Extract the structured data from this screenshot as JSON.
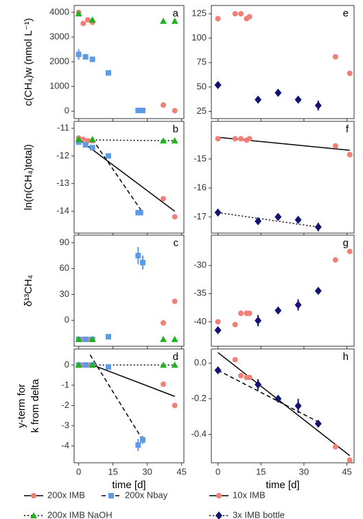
{
  "chart_data": [
    {
      "type": "scatter",
      "panel": "a",
      "ylabel": "c(CH₄)w (nmol L⁻¹)",
      "xlim": [
        -2,
        46
      ],
      "ylim": [
        -300,
        4280
      ],
      "xticks": [
        0,
        15,
        30,
        45
      ],
      "yticks": [
        0,
        1000,
        2000,
        3000,
        4000
      ],
      "series": [
        {
          "name": "200x IMB",
          "color": "#f07f76",
          "marker": "circle",
          "x": [
            0,
            2,
            4,
            6,
            37,
            42
          ],
          "y": [
            4000,
            3550,
            3700,
            3600,
            250,
            20
          ]
        },
        {
          "name": "200x Nbay",
          "color": "#5b9be8",
          "marker": "square",
          "x": [
            0,
            3,
            6,
            13,
            26,
            27,
            28
          ],
          "y": [
            2300,
            2200,
            2100,
            1550,
            30,
            30,
            30
          ],
          "errors": [
            220,
            null,
            null,
            null,
            null,
            null,
            null
          ]
        },
        {
          "name": "200x IMB NaOH",
          "color": "#1db31d",
          "marker": "triangle",
          "x": [
            0,
            6,
            37,
            42
          ],
          "y": [
            3950,
            3700,
            3650,
            3650
          ]
        }
      ],
      "lines": []
    },
    {
      "type": "scatter",
      "panel": "b",
      "ylabel": "ln(n(CH₄)total)",
      "xlim": [
        -2,
        46
      ],
      "ylim": [
        -14.79,
        -10.75
      ],
      "xticks": [
        0,
        15,
        30,
        45
      ],
      "yticks": [
        -14,
        -13,
        -12,
        -11
      ],
      "series": [
        {
          "name": "200x IMB",
          "color": "#f07f76",
          "marker": "circle",
          "x": [
            0,
            2,
            4,
            6,
            37,
            42
          ],
          "y": [
            -11.35,
            -11.4,
            -11.45,
            -11.45,
            -13.55,
            -14.2
          ]
        },
        {
          "name": "200x Nbay",
          "color": "#5b9be8",
          "marker": "square",
          "x": [
            0,
            3,
            6,
            13,
            26,
            27
          ],
          "y": [
            -11.5,
            -11.6,
            -11.7,
            -12,
            -14.05,
            -14.05
          ]
        },
        {
          "name": "200x IMB NaOH",
          "color": "#1db31d",
          "marker": "triangle",
          "x": [
            0,
            6,
            37,
            42
          ],
          "y": [
            -11.4,
            -11.4,
            -11.45,
            -11.45
          ]
        }
      ],
      "lines": [
        {
          "color": "#000000",
          "dash": "solid",
          "x": [
            0,
            42
          ],
          "y": [
            -11.4,
            -14.0
          ]
        },
        {
          "color": "#000000",
          "dash": "dashed",
          "x": [
            6,
            28
          ],
          "y": [
            -11.4,
            -14.05
          ]
        },
        {
          "color": "#000000",
          "dash": "dotted",
          "x": [
            0,
            42
          ],
          "y": [
            -11.42,
            -11.45
          ]
        }
      ]
    },
    {
      "type": "scatter",
      "panel": "c",
      "ylabel": "δ¹³CH₄",
      "xlim": [
        -2,
        46
      ],
      "ylim": [
        -30,
        98.7
      ],
      "xticks": [
        0,
        15,
        30,
        45
      ],
      "yticks": [
        0,
        30,
        60,
        90
      ],
      "series": [
        {
          "name": "200x IMB",
          "color": "#f07f76",
          "marker": "circle",
          "x": [
            0,
            2,
            4,
            6,
            37,
            42
          ],
          "y": [
            -22,
            -22,
            -22,
            -22,
            -3,
            22
          ]
        },
        {
          "name": "200x Nbay",
          "color": "#5b9be8",
          "marker": "square",
          "x": [
            0,
            3,
            6,
            13,
            26,
            28
          ],
          "y": [
            -22,
            -22,
            -22,
            -19,
            75,
            67
          ],
          "errors": [
            null,
            null,
            null,
            null,
            10,
            8
          ]
        },
        {
          "name": "200x IMB NaOH",
          "color": "#1db31d",
          "marker": "triangle",
          "x": [
            0,
            6,
            37,
            42
          ],
          "y": [
            -22,
            -22,
            -22,
            -22
          ]
        }
      ],
      "lines": []
    },
    {
      "type": "scatter",
      "panel": "d",
      "ylabel": [
        "y-term for",
        "k from delta"
      ],
      "xlabel": "time [d]",
      "xlim": [
        -2,
        46
      ],
      "ylim": [
        -4.83,
        0.79
      ],
      "xticks": [
        0,
        15,
        30,
        45
      ],
      "yticks": [
        -4,
        -3,
        -2,
        -1,
        0
      ],
      "series": [
        {
          "name": "200x IMB",
          "color": "#f07f76",
          "marker": "circle",
          "x": [
            0,
            2,
            4,
            6,
            37,
            42
          ],
          "y": [
            0,
            0,
            0,
            0,
            -0.95,
            -2
          ]
        },
        {
          "name": "200x Nbay",
          "color": "#5b9be8",
          "marker": "square",
          "x": [
            0,
            3,
            6,
            13,
            26,
            28
          ],
          "y": [
            0,
            0,
            0,
            -0.1,
            -3.95,
            -3.7
          ],
          "errors": [
            null,
            null,
            null,
            null,
            0.3,
            0.2
          ]
        },
        {
          "name": "200x IMB NaOH",
          "color": "#1db31d",
          "marker": "triangle",
          "x": [
            0,
            6,
            37,
            42
          ],
          "y": [
            0,
            0,
            0,
            0
          ]
        }
      ],
      "lines": [
        {
          "color": "#000000",
          "dash": "solid",
          "x": [
            6,
            42
          ],
          "y": [
            0,
            -1.55
          ]
        },
        {
          "color": "#000000",
          "dash": "dashed",
          "x": [
            5,
            28
          ],
          "y": [
            0.5,
            -3.7
          ]
        },
        {
          "color": "#000000",
          "dash": "dotted",
          "x": [
            0,
            42
          ],
          "y": [
            0,
            0
          ]
        }
      ]
    },
    {
      "type": "scatter",
      "panel": "e",
      "xlim": [
        -2.3,
        47.5
      ],
      "ylim": [
        17.6,
        133.5
      ],
      "xticks": [
        0,
        15,
        30,
        45
      ],
      "yticks": [
        25,
        50,
        75,
        100,
        125
      ],
      "series": [
        {
          "name": "10x IMB",
          "color": "#f07f76",
          "marker": "circle",
          "x": [
            0,
            6,
            8,
            10,
            11,
            41,
            46
          ],
          "y": [
            120,
            125,
            125,
            120,
            122,
            81,
            64
          ]
        },
        {
          "name": "3x IMB bottle",
          "color": "#131470",
          "marker": "diamond",
          "x": [
            0,
            14,
            21,
            28,
            35
          ],
          "y": [
            52,
            37,
            44,
            37,
            31
          ],
          "errors": [
            null,
            null,
            null,
            null,
            5
          ]
        }
      ],
      "lines": []
    },
    {
      "type": "scatter",
      "panel": "f",
      "xlim": [
        -2.3,
        47.5
      ],
      "ylim": [
        -17.56,
        -13.7
      ],
      "xticks": [
        0,
        15,
        30,
        45
      ],
      "yticks": [
        -17,
        -16,
        -15
      ],
      "series": [
        {
          "name": "10x IMB",
          "color": "#f07f76",
          "marker": "circle",
          "x": [
            0,
            6,
            8,
            10,
            11,
            41,
            46
          ],
          "y": [
            -14.3,
            -14.3,
            -14.3,
            -14.35,
            -14.3,
            -14.55,
            -14.85
          ]
        },
        {
          "name": "3x IMB bottle",
          "color": "#131470",
          "marker": "diamond",
          "x": [
            0,
            14,
            21,
            28,
            35
          ],
          "y": [
            -16.85,
            -17.15,
            -17,
            -17.1,
            -17.35
          ],
          "errors": [
            null,
            null,
            null,
            null,
            0.15
          ]
        }
      ],
      "lines": [
        {
          "color": "#000000",
          "dash": "solid",
          "x": [
            0,
            46
          ],
          "y": [
            -14.25,
            -14.7
          ]
        },
        {
          "color": "#000000",
          "dash": "dotted",
          "x": [
            0,
            35
          ],
          "y": [
            -16.85,
            -17.35
          ]
        }
      ]
    },
    {
      "type": "scatter",
      "panel": "g",
      "xlim": [
        -2.3,
        47.5
      ],
      "ylim": [
        -44.35,
        -24.6
      ],
      "xticks": [
        0,
        15,
        30,
        45
      ],
      "yticks": [
        -40,
        -35,
        -30
      ],
      "series": [
        {
          "name": "10x IMB",
          "color": "#f07f76",
          "marker": "circle",
          "x": [
            0,
            6,
            8,
            10,
            11,
            41,
            46
          ],
          "y": [
            -40,
            -40.5,
            -38.5,
            -38.5,
            -38.5,
            -29,
            -27.5
          ]
        },
        {
          "name": "3x IMB bottle",
          "color": "#131470",
          "marker": "diamond",
          "x": [
            0,
            14,
            21,
            28,
            35
          ],
          "y": [
            -41.5,
            -39.8,
            -38,
            -37,
            -34.5
          ],
          "errors": [
            null,
            1,
            null,
            1,
            null
          ]
        }
      ],
      "lines": []
    },
    {
      "type": "scatter",
      "panel": "h",
      "xlabel": "time [d]",
      "xlim": [
        -2.3,
        47.5
      ],
      "ylim": [
        -0.56,
        0.08
      ],
      "xticks": [
        0,
        15,
        30,
        45
      ],
      "yticks": [
        {
          "value": -0.4,
          "label": "-0.4"
        },
        {
          "value": -0.2,
          "label": "-0.2"
        },
        {
          "value": 0,
          "label": "0.0"
        }
      ],
      "series": [
        {
          "name": "10x IMB",
          "color": "#f07f76",
          "marker": "circle",
          "x": [
            6,
            8,
            10,
            11,
            41,
            46
          ],
          "y": [
            0.02,
            -0.07,
            -0.08,
            -0.08,
            -0.47,
            -0.545
          ]
        },
        {
          "name": "3x IMB bottle",
          "color": "#131470",
          "marker": "diamond",
          "x": [
            0,
            14,
            21,
            28,
            35
          ],
          "y": [
            -0.04,
            -0.12,
            -0.2,
            -0.24,
            -0.34
          ],
          "errors": [
            null,
            0.03,
            null,
            0.04,
            null
          ]
        }
      ],
      "lines": [
        {
          "color": "#000000",
          "dash": "solid",
          "x": [
            0,
            46
          ],
          "y": [
            0.06,
            -0.52
          ]
        },
        {
          "color": "#000000",
          "dash": "dashed",
          "x": [
            0,
            35
          ],
          "y": [
            -0.04,
            -0.33
          ]
        }
      ]
    }
  ],
  "legend": [
    {
      "name": "200x IMB",
      "color": "#f07f76",
      "marker": "circle",
      "dash": "solid"
    },
    {
      "name": "200x Nbay",
      "color": "#5b9be8",
      "marker": "square",
      "dash": "dashed"
    },
    {
      "name": "10x IMB",
      "color": "#f07f76",
      "marker": "circle",
      "dash": "solid"
    },
    {
      "name": "200x IMB NaOH",
      "color": "#1db31d",
      "marker": "triangle",
      "dash": "dotted"
    },
    {
      "name": "3x IMB bottle",
      "color": "#131470",
      "marker": "diamond",
      "dash": "dotted"
    }
  ]
}
